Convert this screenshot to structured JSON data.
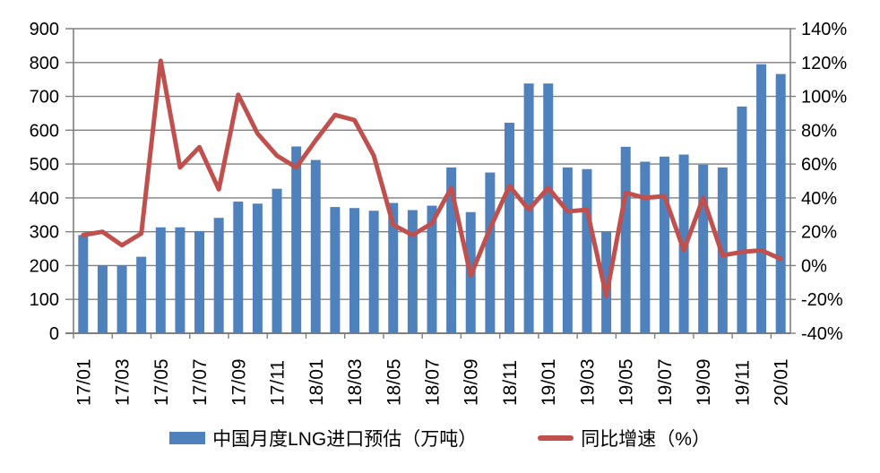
{
  "chart_data": {
    "type": "combo-bar-line",
    "title": "",
    "categories": [
      "17/01",
      "17/02",
      "17/03",
      "17/04",
      "17/05",
      "17/06",
      "17/07",
      "17/08",
      "17/09",
      "17/10",
      "17/11",
      "17/12",
      "18/01",
      "18/02",
      "18/03",
      "18/04",
      "18/05",
      "18/06",
      "18/07",
      "18/08",
      "18/09",
      "18/10",
      "18/11",
      "18/12",
      "19/01",
      "19/02",
      "19/03",
      "19/04",
      "19/05",
      "19/06",
      "19/07",
      "19/08",
      "19/09",
      "19/10",
      "19/11",
      "19/12",
      "20/01"
    ],
    "series": [
      {
        "name": "中国月度LNG进口预估（万吨）",
        "type": "bar",
        "axis": "left",
        "color": "#4F81BD",
        "values": [
          290,
          200,
          200,
          226,
          313,
          313,
          302,
          341,
          389,
          383,
          427,
          552,
          512,
          373,
          370,
          362,
          385,
          364,
          377,
          490,
          358,
          475,
          622,
          738,
          738,
          490,
          485,
          300,
          551,
          507,
          522,
          528,
          498,
          490,
          670,
          795,
          766
        ]
      },
      {
        "name": "同比增速（%）",
        "type": "line",
        "axis": "right",
        "color": "#C0504D",
        "values": [
          18,
          20,
          12,
          19,
          121,
          58,
          70,
          45,
          101,
          78,
          65,
          58,
          74,
          89,
          86,
          65,
          24,
          18,
          25,
          46,
          -6,
          22,
          47,
          33,
          46,
          32,
          33,
          -18,
          43,
          40,
          41,
          9,
          40,
          6,
          8,
          9,
          4
        ]
      }
    ],
    "left_axis": {
      "min": 0,
      "max": 900,
      "step": 100,
      "tick_labels": [
        "0",
        "100",
        "200",
        "300",
        "400",
        "500",
        "600",
        "700",
        "800",
        "900"
      ]
    },
    "right_axis": {
      "min": -40,
      "max": 140,
      "step": 20,
      "tick_labels": [
        "-40%",
        "-20%",
        "0%",
        "20%",
        "40%",
        "60%",
        "80%",
        "100%",
        "120%",
        "140%"
      ]
    },
    "x_axis": {
      "label_every": 2,
      "labels_shown": [
        "17/01",
        "17/03",
        "17/05",
        "17/07",
        "17/09",
        "17/11",
        "18/01",
        "18/03",
        "18/05",
        "18/07",
        "18/09",
        "18/11",
        "19/01",
        "19/03",
        "19/05",
        "19/07",
        "19/09",
        "19/11",
        "20/01"
      ]
    },
    "grid": true,
    "legend_position": "bottom"
  },
  "colors": {
    "bar": "#4F81BD",
    "line": "#C0504D",
    "gridline": "#7F7F7F",
    "axis_line": "#7F7F7F",
    "text": "#000000",
    "background": "#FFFFFF"
  }
}
